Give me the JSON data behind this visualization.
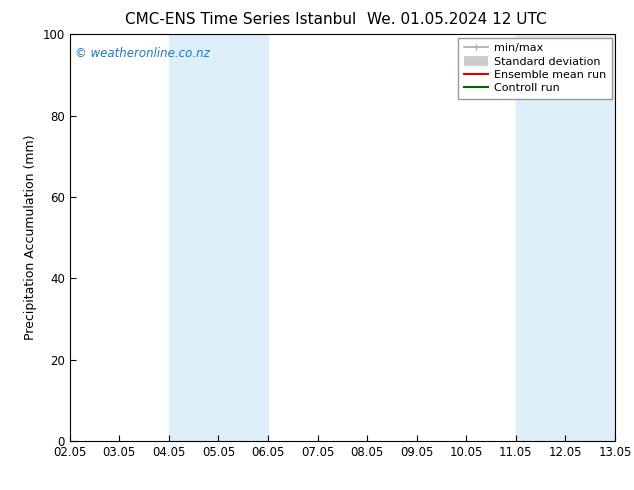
{
  "title_left": "CMC-ENS Time Series Istanbul",
  "title_right": "We. 01.05.2024 12 UTC",
  "ylabel": "Precipitation Accumulation (mm)",
  "ylim": [
    0,
    100
  ],
  "yticks": [
    0,
    20,
    40,
    60,
    80,
    100
  ],
  "xtick_labels": [
    "02.05",
    "03.05",
    "04.05",
    "05.05",
    "06.05",
    "07.05",
    "08.05",
    "09.05",
    "10.05",
    "11.05",
    "12.05",
    "13.05"
  ],
  "xtick_positions": [
    0,
    1,
    2,
    3,
    4,
    5,
    6,
    7,
    8,
    9,
    10,
    11
  ],
  "shaded_regions": [
    {
      "x_start": 2,
      "x_end": 4,
      "color": "#ddeef8"
    },
    {
      "x_start": 9,
      "x_end": 11,
      "color": "#ddeef8"
    }
  ],
  "watermark_text": "© weatheronline.co.nz",
  "watermark_color": "#1a7abf",
  "legend_items": [
    {
      "label": "min/max",
      "color": "#aaaaaa",
      "lw": 1.2
    },
    {
      "label": "Standard deviation",
      "color": "#cccccc",
      "lw": 7
    },
    {
      "label": "Ensemble mean run",
      "color": "#dd0000",
      "lw": 1.5
    },
    {
      "label": "Controll run",
      "color": "#006600",
      "lw": 1.5
    }
  ],
  "bg_color": "#ffffff",
  "title_fontsize": 11,
  "axis_fontsize": 9,
  "tick_fontsize": 8.5,
  "legend_fontsize": 8
}
